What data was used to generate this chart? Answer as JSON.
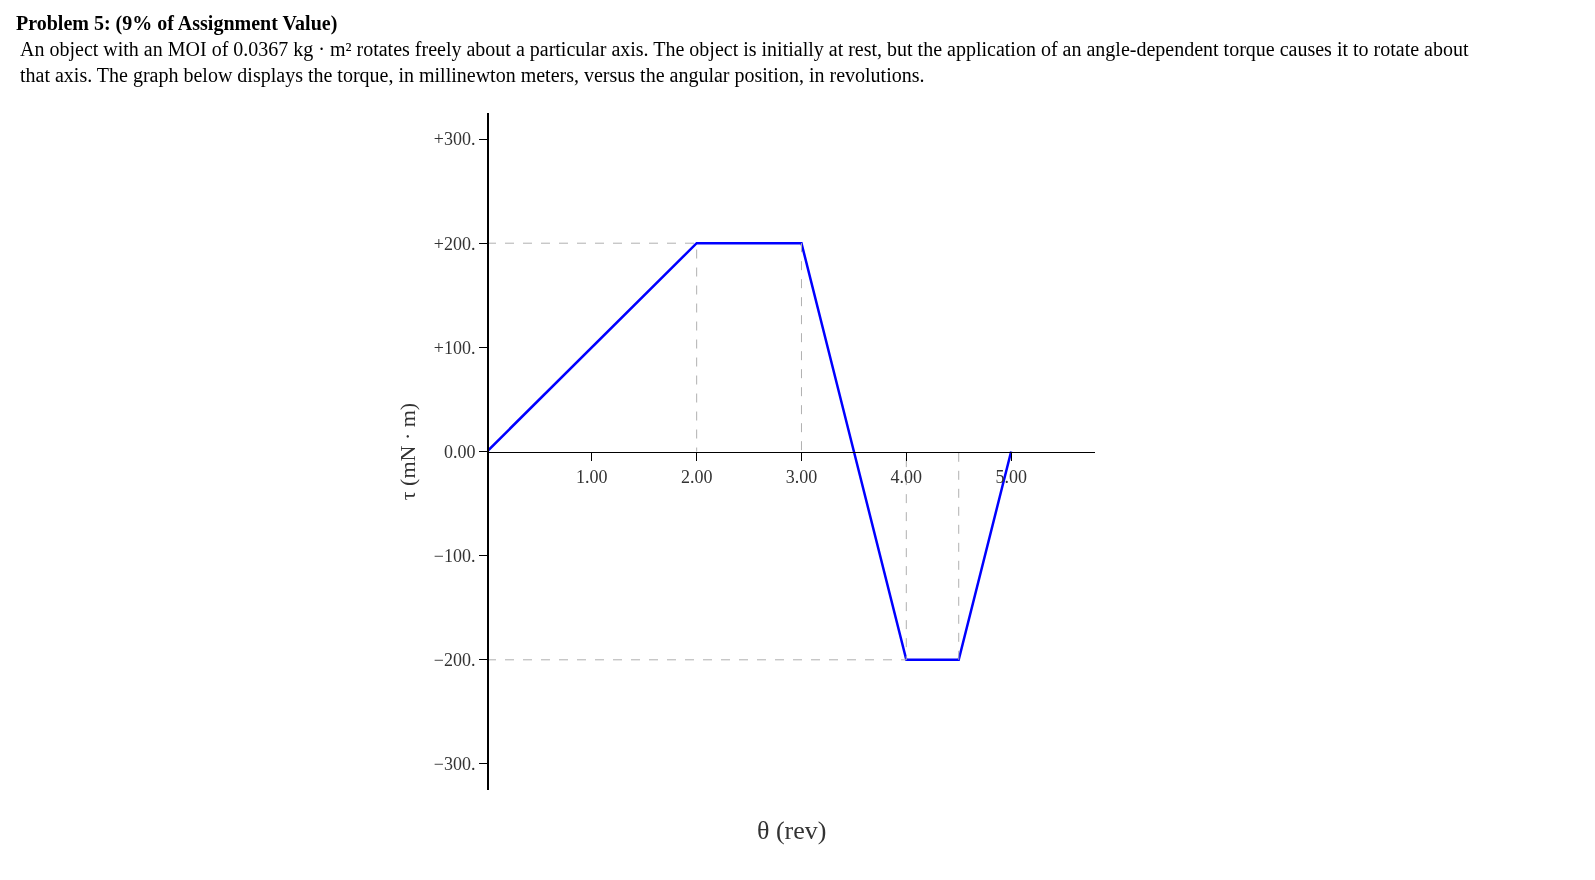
{
  "chart_data": {
    "type": "line",
    "title": "Problem 5: (9% of Assignment Value)",
    "subtitle": "An object with an MOI of 0.0367 kg · m² rotates freely about a particular axis. The object is initially at rest, but the application of an angle-dependent torque causes it to rotate about that axis. The graph below displays the torque, in millinewton meters, versus the angular position, in revolutions.",
    "xlabel": "θ (rev)",
    "ylabel": "τ (mN · m)",
    "series": [
      {
        "color": "#0000ff",
        "x": [
          0,
          2,
          3,
          3.5,
          4,
          4.5,
          5
        ],
        "values": [
          0,
          200,
          200,
          0,
          -200,
          -200,
          0
        ]
      },
      {
        "color": "#b0b0b0",
        "line_style": "dashed",
        "x": [
          0,
          2,
          2
        ],
        "values": [
          200,
          200,
          0
        ]
      },
      {
        "color": "#b0b0b0",
        "line_style": "dashed",
        "x": [
          3,
          3
        ],
        "values": [
          200,
          0
        ]
      },
      {
        "color": "#b0b0b0",
        "line_style": "dashed",
        "x": [
          0,
          4,
          4
        ],
        "values": [
          -200,
          -200,
          0
        ]
      },
      {
        "color": "#b0b0b0",
        "line_style": "dashed",
        "x": [
          4.5,
          4.5
        ],
        "values": [
          -200,
          0
        ]
      }
    ],
    "xlim": [
      0,
      5.8
    ],
    "ylim": [
      -325,
      325
    ],
    "xticks": [
      {
        "value": 1,
        "label": "1.00"
      },
      {
        "value": 2,
        "label": "2.00"
      },
      {
        "value": 3,
        "label": "3.00"
      },
      {
        "value": 4,
        "label": "4.00"
      },
      {
        "value": 5,
        "label": "5.00"
      }
    ],
    "yticks": [
      {
        "value": 300,
        "label": "+300."
      },
      {
        "value": 200,
        "label": "+200."
      },
      {
        "value": 100,
        "label": "+100."
      },
      {
        "value": 0,
        "label": "0.00"
      },
      {
        "value": -100,
        "label": "−100."
      },
      {
        "value": -200,
        "label": "−200."
      },
      {
        "value": -300,
        "label": "−300."
      }
    ],
    "grid": false
  }
}
